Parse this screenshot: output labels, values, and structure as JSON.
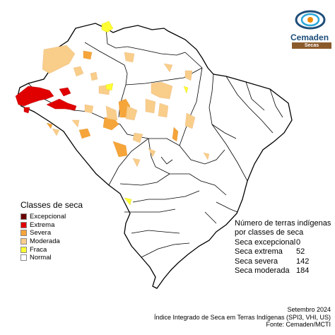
{
  "brand": {
    "name": "Cemaden",
    "tag": "Secas",
    "colors": {
      "blue": "#1f4e79",
      "cyan": "#2aa7d8",
      "orange": "#f08c00",
      "brown": "#8b5a2b"
    }
  },
  "legend": {
    "title": "Classes de seca",
    "items": [
      {
        "label": "Excepcional",
        "color": "#6b0000"
      },
      {
        "label": "Extrema",
        "color": "#e00000"
      },
      {
        "label": "Severa",
        "color": "#f5a53a"
      },
      {
        "label": "Moderada",
        "color": "#f9cd8a"
      },
      {
        "label": "Fraca",
        "color": "#ffff33"
      },
      {
        "label": "Normal",
        "color": "#ffffff"
      }
    ]
  },
  "counts": {
    "title_line1": "Número de terras indígenas",
    "title_line2": "por classes de seca",
    "rows": [
      {
        "label": "Seca excepcional",
        "value": "0"
      },
      {
        "label": "Seca extrema",
        "value": "52"
      },
      {
        "label": "Seca severa",
        "value": "142"
      },
      {
        "label": "Seca moderada",
        "value": "184"
      }
    ]
  },
  "footer": {
    "line1": "Setembro 2024",
    "line2": "Índice Integrado de Seca em Terras Indígenas (SPI3, VHI, US)",
    "line3": "Fonte: Cemaden/MCTI"
  }
}
